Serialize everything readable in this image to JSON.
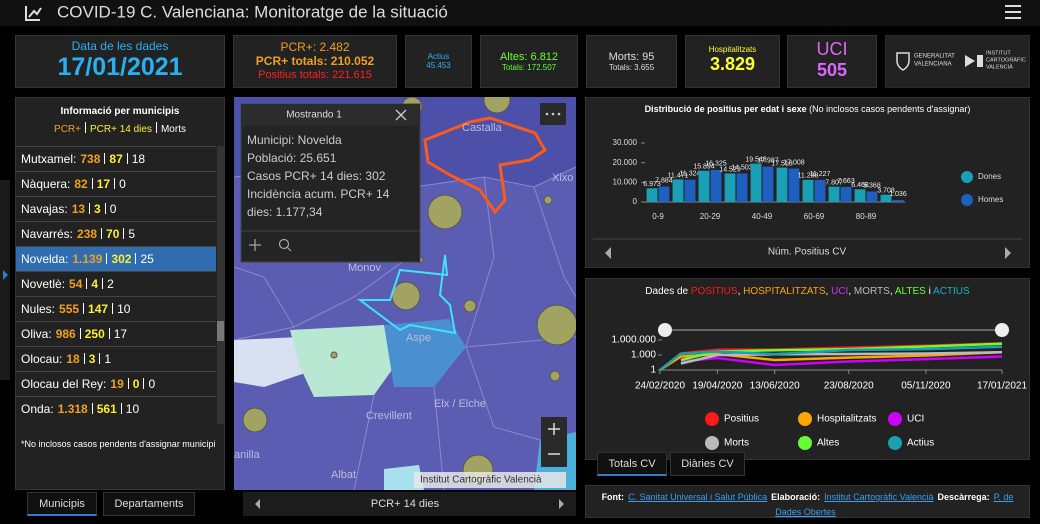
{
  "header": {
    "title": "COVID-19 C. Valenciana: Monitoratge de la situació"
  },
  "indicators": {
    "date": {
      "label": "Data de les dades",
      "value": "17/01/2021"
    },
    "pcr": {
      "daily": "PCR+: 2.482",
      "total": "PCR+ totals: 210.052",
      "positius": "Positius totals: 221.615"
    },
    "actius": {
      "label": "Actius",
      "value": "45.453"
    },
    "altes": {
      "daily": "Altes: 6.812",
      "total": "Totals: 172.507"
    },
    "morts": {
      "daily": "Morts: 95",
      "total": "Totals: 3.655"
    },
    "hospitalitzats": {
      "label": "Hospitalitzats",
      "value": "3.829"
    },
    "uci": {
      "label": "UCI",
      "value": "505"
    }
  },
  "logos": {
    "gva": [
      "GENERALITAT",
      "VALENCIANA"
    ],
    "icv": [
      "INSTITUT",
      "CARTOGRÀFIC",
      "VALENCIÀ"
    ]
  },
  "municipis": {
    "title": "Informació per municipis",
    "legend": [
      "PCR+",
      "PCR+ 14 dies",
      "Morts"
    ],
    "selected_row": 4,
    "rows": [
      {
        "name": "Mutxamel:",
        "pcr": "738",
        "pcr14": "87",
        "morts": "18"
      },
      {
        "name": "Nàquera:",
        "pcr": "82",
        "pcr14": "17",
        "morts": "0"
      },
      {
        "name": "Navajas:",
        "pcr": "13",
        "pcr14": "3",
        "morts": "0"
      },
      {
        "name": "Navarrés:",
        "pcr": "238",
        "pcr14": "70",
        "morts": "5"
      },
      {
        "name": "Novelda:",
        "pcr": "1.139",
        "pcr14": "302",
        "morts": "25"
      },
      {
        "name": "Novetlè:",
        "pcr": "54",
        "pcr14": "4",
        "morts": "2"
      },
      {
        "name": "Nules:",
        "pcr": "555",
        "pcr14": "147",
        "morts": "10"
      },
      {
        "name": "Oliva:",
        "pcr": "986",
        "pcr14": "250",
        "morts": "17"
      },
      {
        "name": "Olocau:",
        "pcr": "18",
        "pcr14": "3",
        "morts": "1"
      },
      {
        "name": "Olocau del Rey:",
        "pcr": "19",
        "pcr14": "0",
        "morts": "0"
      },
      {
        "name": "Onda:",
        "pcr": "1.318",
        "pcr14": "561",
        "morts": "10"
      }
    ],
    "note": "*No inclosos casos pendents d'assignar municipi",
    "tabs": [
      "Municipis",
      "Departaments"
    ]
  },
  "map": {
    "popup_title": "Mostrando 1",
    "popup_lines": [
      "Municipi: Novelda",
      "Població: 25.651",
      "Casos PCR+ 14 dies: 302",
      "Incidència acum. PCR+ 14",
      "dies: 1.177,34"
    ],
    "labels": [
      "Castalla",
      "Xixo",
      "Monov",
      "Aspe",
      "Elx / Elche",
      "Crevillent",
      "anilla",
      "Albat"
    ],
    "attribution": "Institut Cartogràfic Valencià",
    "footer": "PCR+ 14 dies"
  },
  "chart_data": [
    {
      "type": "bar",
      "title": "Distribució de positius per edat i sexe",
      "subtitle": "(No inclosos casos pendents d'assignar)",
      "categories": [
        "0-9",
        null,
        "20-29",
        null,
        "40-49",
        null,
        "60-69",
        null,
        "80-89",
        null
      ],
      "series": [
        {
          "name": "Dones",
          "color": "#1a9fb4",
          "values": [
            6973,
            11471,
            15894,
            14529,
            19548,
            17518,
            11238,
            7807,
            6468,
            3708
          ],
          "value_labels": [
            "6.973",
            "11.471",
            "15.894",
            "14.529",
            "19.548",
            "17.518",
            "11.238",
            "7.807",
            "6.468",
            "3.708"
          ]
        },
        {
          "name": "Homes",
          "color": "#1f5fbf",
          "values": [
            7884,
            11324,
            16325,
            14503,
            17987,
            17008,
            11227,
            7663,
            5368,
            1036
          ],
          "value_labels": [
            "7.884",
            "11.324",
            "16.325",
            "14.503",
            "17.987",
            "17.008",
            "11.227",
            "7.663",
            "5.368",
            "1.036"
          ]
        }
      ],
      "ylim": [
        0,
        30000
      ],
      "yticks": [
        0,
        {
          "value": 10000,
          "label": "10.000"
        },
        {
          "value": 20000,
          "label": "20.000"
        },
        {
          "value": 30000,
          "label": "30.000"
        }
      ],
      "x_label": "Núm. Positius CV",
      "grid": false
    },
    {
      "type": "line",
      "title_parts": [
        {
          "text": "Dades de ",
          "color": "#ffffff"
        },
        {
          "text": "POSITIUS",
          "color": "#ff1a1a"
        },
        {
          "text": ", ",
          "color": "#ffffff"
        },
        {
          "text": "HOSPITALITZATS",
          "color": "#ffa500"
        },
        {
          "text": ", ",
          "color": "#ffffff"
        },
        {
          "text": "UCI",
          "color": "#cc33ff"
        },
        {
          "text": ", ",
          "color": "#ffffff"
        },
        {
          "text": "MORTS",
          "color": "#bbbbbb"
        },
        {
          "text": ", ",
          "color": "#ffffff"
        },
        {
          "text": "ALTES",
          "color": "#66ff33"
        },
        {
          "text": " i ",
          "color": "#ffffff"
        },
        {
          "text": "ACTIUS",
          "color": "#1ab0c8"
        }
      ],
      "x": [
        "24/02/2020",
        "15/03/2020",
        "19/04/2020",
        "13/06/2020",
        "23/08/2020",
        "05/11/2020",
        "17/01/2021"
      ],
      "series": [
        {
          "name": "Positius",
          "color": "#ff1a1a",
          "values": [
            1,
            2000,
            11000,
            12000,
            30000,
            70000,
            221615
          ]
        },
        {
          "name": "Hospitalitzats",
          "color": "#ffa500",
          "values": [
            1,
            500,
            1500,
            100,
            300,
            800,
            3829
          ]
        },
        {
          "name": "UCI",
          "color": "#cc00ff",
          "values": [
            null,
            50,
            250,
            10,
            50,
            150,
            505
          ]
        },
        {
          "name": "Morts",
          "color": "#bbbbbb",
          "values": [
            null,
            20,
            1000,
            1400,
            1600,
            2000,
            3655
          ]
        },
        {
          "name": "Altes",
          "color": "#66ff33",
          "values": [
            null,
            100,
            5000,
            9000,
            15000,
            50000,
            172507
          ]
        },
        {
          "name": "Actius",
          "color": "#1aa0b0",
          "values": [
            1,
            1800,
            5000,
            1500,
            10000,
            15000,
            45453
          ]
        }
      ],
      "xlim": [
        "24/02/2020",
        "17/01/2021"
      ],
      "xticks": [
        "24/02/2020",
        "19/04/2020",
        "13/06/2020",
        "23/08/2020",
        "05/11/2020",
        "17/01/2021"
      ],
      "ylim": [
        1,
        10000000
      ],
      "yticks": [
        1,
        {
          "value": 1000,
          "label": "1.000"
        },
        {
          "value": 1000000,
          "label": "1.000.000"
        }
      ],
      "log_scale": true
    }
  ],
  "chart_tabs": [
    "Totals CV",
    "Diàries CV"
  ],
  "footer": [
    {
      "text": "Font:",
      "kind": "label"
    },
    {
      "text": "C. Sanitat Universal i Salut Pública",
      "kind": "link"
    },
    {
      "text": "Elaboració:",
      "kind": "label"
    },
    {
      "text": "Institut Cartogràfic Valencià",
      "kind": "link"
    },
    {
      "text": "Descàrrega:",
      "kind": "label"
    },
    {
      "text": "P. de Dades Obertes",
      "kind": "link"
    }
  ]
}
